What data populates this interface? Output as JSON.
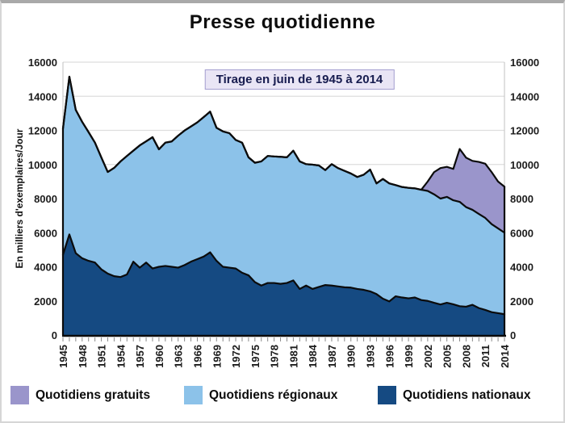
{
  "chart_data": {
    "type": "area",
    "stacked": true,
    "title": "Presse quotidienne",
    "subtitle": "Tirage en juin de 1945 à 2014",
    "ylabel": "En milliers d'exemplaires/Jour",
    "xlabel": "",
    "ylim": [
      0,
      16000
    ],
    "y_ticks": [
      0,
      2000,
      4000,
      6000,
      8000,
      10000,
      12000,
      14000,
      16000
    ],
    "grid": true,
    "legend_position": "bottom",
    "x": [
      1945,
      1946,
      1947,
      1948,
      1949,
      1950,
      1951,
      1952,
      1953,
      1954,
      1955,
      1956,
      1957,
      1958,
      1959,
      1960,
      1961,
      1962,
      1963,
      1964,
      1965,
      1966,
      1967,
      1968,
      1969,
      1970,
      1971,
      1972,
      1973,
      1974,
      1975,
      1976,
      1977,
      1978,
      1979,
      1980,
      1981,
      1982,
      1983,
      1984,
      1985,
      1986,
      1987,
      1988,
      1989,
      1990,
      1991,
      1992,
      1993,
      1994,
      1995,
      1996,
      1997,
      1998,
      1999,
      2000,
      2001,
      2002,
      2003,
      2004,
      2005,
      2006,
      2007,
      2008,
      2009,
      2010,
      2011,
      2012,
      2013,
      2014
    ],
    "x_tick_labels": [
      "1945",
      "1948",
      "1951",
      "1954",
      "1957",
      "1960",
      "1963",
      "1966",
      "1969",
      "1972",
      "1975",
      "1978",
      "1981",
      "1984",
      "1987",
      "1990",
      "1993",
      "1996",
      "1999",
      "2002",
      "2005",
      "2008",
      "2011",
      "2014"
    ],
    "series": [
      {
        "name": "Quotidiens nationaux",
        "color": "#154a82",
        "values": [
          4700,
          5900,
          4800,
          4500,
          4350,
          4250,
          3850,
          3600,
          3450,
          3400,
          3550,
          4300,
          3950,
          4250,
          3900,
          4000,
          4050,
          4000,
          3950,
          4100,
          4300,
          4450,
          4600,
          4850,
          4350,
          4000,
          3950,
          3900,
          3650,
          3500,
          3100,
          2900,
          3050,
          3050,
          3000,
          3050,
          3200,
          2700,
          2900,
          2700,
          2820,
          2930,
          2900,
          2850,
          2800,
          2780,
          2700,
          2650,
          2560,
          2400,
          2130,
          1970,
          2270,
          2200,
          2150,
          2200,
          2050,
          2000,
          1890,
          1790,
          1890,
          1800,
          1690,
          1660,
          1770,
          1580,
          1470,
          1340,
          1280,
          1220
        ]
      },
      {
        "name": "Quotidiens régionaux",
        "color": "#8cc2e9",
        "values": [
          7400,
          9250,
          8400,
          8000,
          7550,
          7030,
          6560,
          5960,
          6350,
          6780,
          6950,
          6510,
          7170,
          7110,
          7700,
          6890,
          7230,
          7350,
          7740,
          7890,
          7930,
          8020,
          8180,
          8250,
          7800,
          7940,
          7890,
          7540,
          7630,
          6920,
          7000,
          7280,
          7450,
          7420,
          7450,
          7370,
          7610,
          7480,
          7120,
          7290,
          7120,
          6740,
          7120,
          6935,
          6825,
          6690,
          6565,
          6750,
          7140,
          6490,
          7020,
          6920,
          6520,
          6480,
          6480,
          6400,
          6470,
          6450,
          6360,
          6210,
          6210,
          6100,
          6120,
          5840,
          5570,
          5520,
          5395,
          5160,
          4970,
          4780
        ]
      },
      {
        "name": "Quotidiens gratuits",
        "color": "#9a95cb",
        "values": [
          0,
          0,
          0,
          0,
          0,
          0,
          0,
          0,
          0,
          0,
          0,
          0,
          0,
          0,
          0,
          0,
          0,
          0,
          0,
          0,
          0,
          0,
          0,
          0,
          0,
          0,
          0,
          0,
          0,
          0,
          0,
          0,
          0,
          0,
          0,
          0,
          0,
          0,
          0,
          0,
          0,
          0,
          0,
          0,
          0,
          0,
          0,
          0,
          0,
          0,
          0,
          0,
          0,
          0,
          0,
          0,
          0,
          550,
          1300,
          1790,
          1760,
          1840,
          3100,
          2900,
          2870,
          3050,
          3180,
          3050,
          2750,
          2700
        ]
      }
    ],
    "legend": [
      {
        "label": "Quotidiens gratuits",
        "color": "#9a95cb"
      },
      {
        "label": "Quotidiens régionaux",
        "color": "#8cc2e9"
      },
      {
        "label": "Quotidiens nationaux",
        "color": "#154a82"
      }
    ],
    "style": {
      "outline_color": "#0b0b0b",
      "gridline_color": "#dedede",
      "axis_line_color": "#c2c2c2",
      "tick_color": "#8a8a8a",
      "label_color": "#1c1c1c"
    }
  }
}
